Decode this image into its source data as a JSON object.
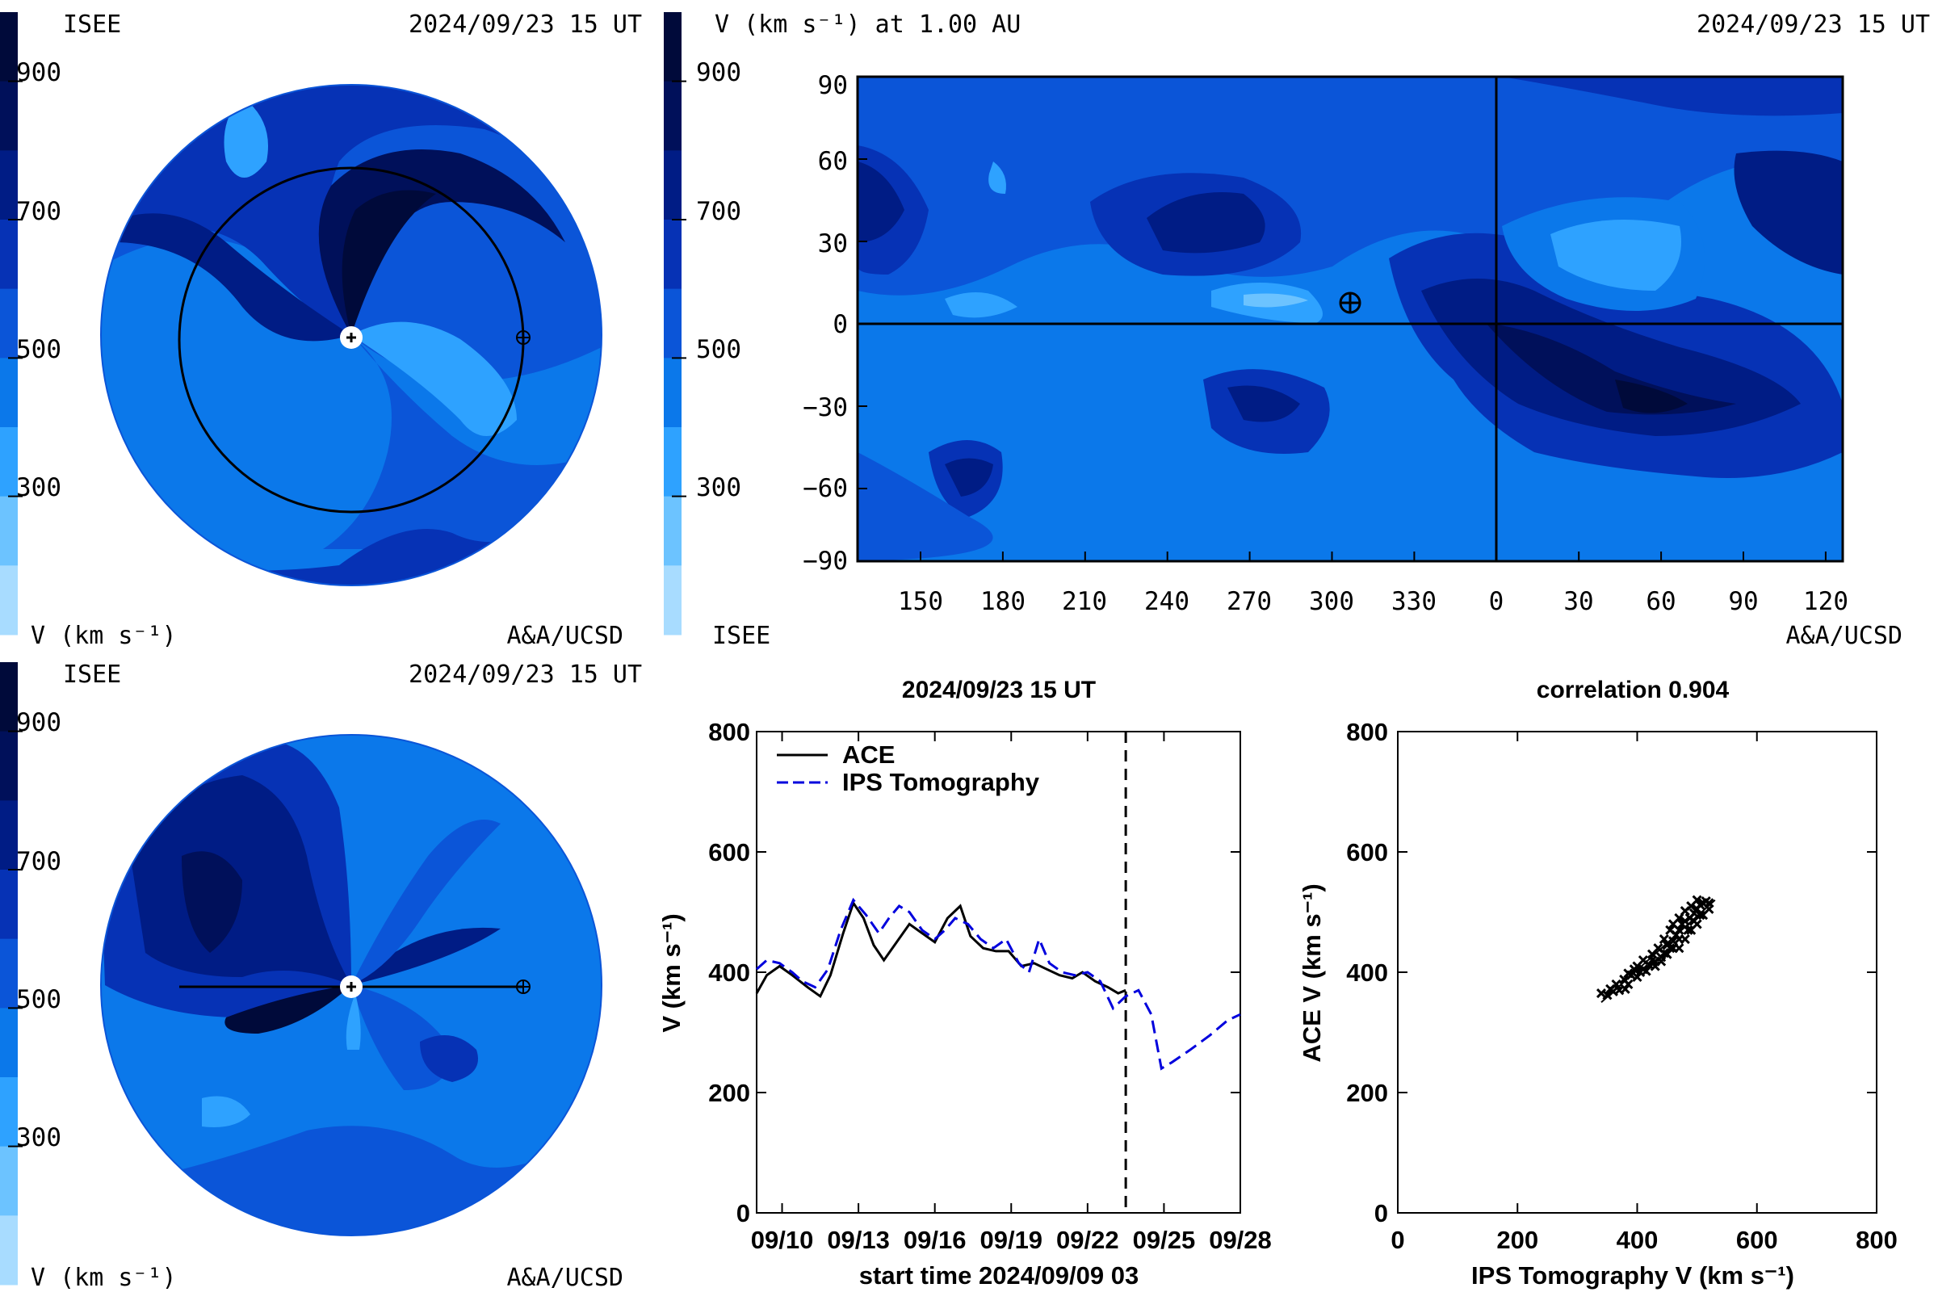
{
  "colors": {
    "bg": "#ffffff",
    "c900": "#000a3a",
    "c800": "#00105a",
    "c700": "#001c85",
    "c600": "#0632b5",
    "c500": "#0b55d8",
    "c400": "#0b78ea",
    "c300": "#2ea2ff",
    "c200": "#6cc3ff",
    "c100": "#a8dcff",
    "ace": "#000000",
    "ips": "#0000dd"
  },
  "colorbar_ticks": [
    "900",
    "700",
    "500",
    "300"
  ],
  "panel_top_left": {
    "org": "ISEE",
    "time": "2024/09/23 15 UT",
    "units": "V (km s⁻¹)",
    "credit": "A&A/UCSD"
  },
  "panel_bottom_left": {
    "org": "ISEE",
    "time": "2024/09/23 15 UT",
    "units": "V (km s⁻¹)",
    "credit": "A&A/UCSD"
  },
  "panel_map": {
    "title": "V (km s⁻¹) at 1.00 AU",
    "time": "2024/09/23 15 UT",
    "org": "ISEE",
    "credit": "A&A/UCSD",
    "lat_ticks": [
      "90",
      "60",
      "30",
      "0",
      "−30",
      "−60",
      "−90"
    ],
    "lon_ticks": [
      "150",
      "180",
      "210",
      "240",
      "270",
      "300",
      "330",
      "0",
      "30",
      "60",
      "90",
      "120"
    ]
  },
  "chart_data": [
    {
      "type": "line",
      "title": "2024/09/23 15 UT",
      "xlabel": "start time 2024/09/09 03",
      "ylabel": "V (km s⁻¹)",
      "ylim": [
        0,
        800
      ],
      "yticks": [
        "800",
        "600",
        "400",
        "200",
        "0"
      ],
      "xticks": [
        "09/10",
        "09/13",
        "09/16",
        "09/19",
        "09/22",
        "09/25",
        "09/28"
      ],
      "xtick_days": [
        1,
        4,
        7,
        10,
        13,
        16,
        19
      ],
      "xlim_days": [
        0,
        19
      ],
      "current_time_day": 14.5,
      "legend": [
        "ACE",
        "IPS Tomography"
      ],
      "series": [
        {
          "name": "ACE",
          "x": [
            0,
            0.4,
            0.9,
            1.4,
            2.0,
            2.5,
            2.9,
            3.4,
            3.8,
            4.2,
            4.6,
            5.0,
            5.5,
            6.0,
            6.5,
            7.0,
            7.5,
            8.0,
            8.4,
            8.9,
            9.4,
            9.9,
            10.4,
            10.9,
            11.4,
            11.9,
            12.4,
            12.8,
            13.3,
            13.8,
            14.2,
            14.5
          ],
          "y": [
            365,
            395,
            410,
            395,
            375,
            360,
            395,
            465,
            515,
            490,
            445,
            420,
            450,
            480,
            465,
            450,
            490,
            510,
            460,
            440,
            435,
            435,
            410,
            415,
            405,
            395,
            390,
            400,
            385,
            375,
            365,
            370
          ]
        },
        {
          "name": "IPS Tomography",
          "x": [
            0,
            0.4,
            0.9,
            1.4,
            1.8,
            2.3,
            2.8,
            3.3,
            3.8,
            4.3,
            4.8,
            5.2,
            5.6,
            6.0,
            6.5,
            7.0,
            7.4,
            7.8,
            8.3,
            8.8,
            9.3,
            9.8,
            10.3,
            10.7,
            11.1,
            11.5,
            12.0,
            12.5,
            13.0,
            13.5,
            14.0,
            14.5,
            15.0,
            15.5,
            15.9,
            16.3,
            17.0,
            17.8,
            18.5,
            19.0
          ],
          "y": [
            405,
            420,
            415,
            400,
            385,
            375,
            405,
            470,
            520,
            495,
            465,
            490,
            510,
            500,
            470,
            455,
            470,
            490,
            480,
            455,
            440,
            455,
            415,
            400,
            455,
            415,
            400,
            395,
            400,
            385,
            340,
            360,
            370,
            330,
            240,
            250,
            270,
            295,
            320,
            330
          ]
        }
      ]
    },
    {
      "type": "scatter",
      "title": "correlation 0.904",
      "xlabel": "IPS Tomography V (km s⁻¹)",
      "ylabel": "ACE V (km s⁻¹)",
      "xlim": [
        0,
        800
      ],
      "ylim": [
        0,
        800
      ],
      "xticks": [
        "0",
        "200",
        "400",
        "600",
        "800"
      ],
      "yticks": [
        "800",
        "600",
        "400",
        "200",
        "0"
      ],
      "fit_line": [
        [
          340,
          350
        ],
        [
          530,
          520
        ]
      ],
      "points": [
        [
          340,
          365
        ],
        [
          350,
          362
        ],
        [
          360,
          368
        ],
        [
          370,
          370
        ],
        [
          380,
          372
        ],
        [
          385,
          380
        ],
        [
          378,
          388
        ],
        [
          390,
          395
        ],
        [
          400,
          392
        ],
        [
          405,
          400
        ],
        [
          410,
          405
        ],
        [
          400,
          410
        ],
        [
          420,
          412
        ],
        [
          425,
          420
        ],
        [
          430,
          418
        ],
        [
          415,
          402
        ],
        [
          440,
          425
        ],
        [
          445,
          432
        ],
        [
          455,
          440
        ],
        [
          450,
          445
        ],
        [
          460,
          452
        ],
        [
          465,
          462
        ],
        [
          470,
          470
        ],
        [
          475,
          480
        ],
        [
          480,
          485
        ],
        [
          488,
          490
        ],
        [
          495,
          498
        ],
        [
          500,
          505
        ],
        [
          505,
          512
        ],
        [
          510,
          515
        ],
        [
          515,
          518
        ],
        [
          520,
          515
        ],
        [
          505,
          495
        ],
        [
          495,
          485
        ],
        [
          485,
          470
        ],
        [
          470,
          455
        ],
        [
          460,
          440
        ],
        [
          450,
          430
        ],
        [
          440,
          418
        ],
        [
          430,
          410
        ],
        [
          455,
          470
        ],
        [
          470,
          490
        ],
        [
          480,
          502
        ],
        [
          490,
          510
        ],
        [
          500,
          520
        ],
        [
          460,
          480
        ],
        [
          445,
          455
        ],
        [
          435,
          440
        ],
        [
          425,
          430
        ],
        [
          410,
          420
        ],
        [
          395,
          405
        ],
        [
          385,
          398
        ],
        [
          365,
          380
        ],
        [
          355,
          372
        ],
        [
          470,
          440
        ],
        [
          480,
          455
        ],
        [
          490,
          470
        ],
        [
          500,
          480
        ],
        [
          510,
          495
        ],
        [
          520,
          505
        ]
      ]
    }
  ]
}
